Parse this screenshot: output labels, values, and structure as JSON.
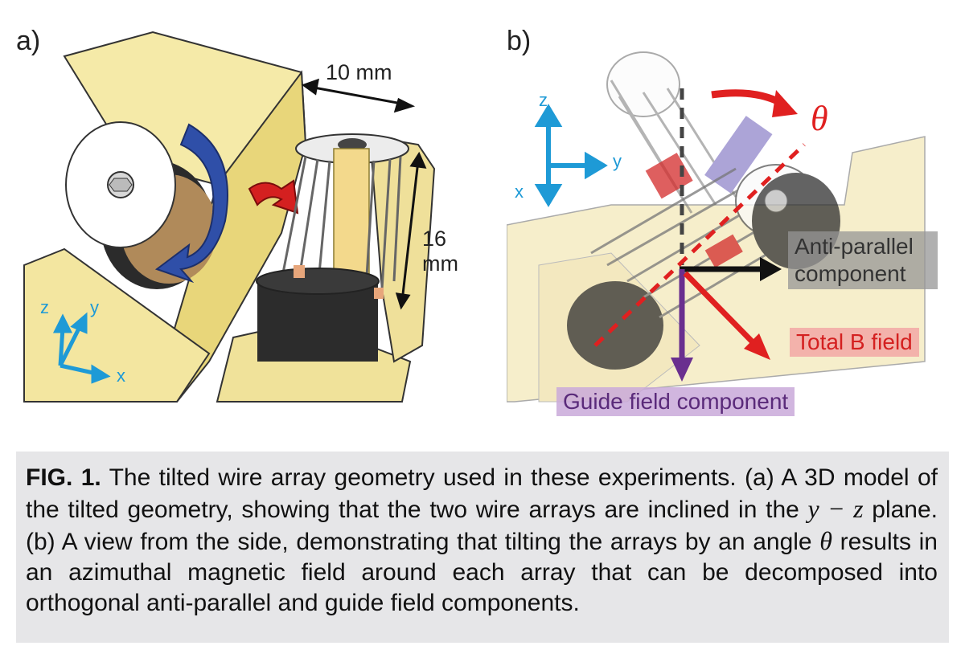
{
  "panel_a": {
    "label": "a)",
    "dim_width": "10 mm",
    "dim_height": "16 mm",
    "axes": {
      "z": "z",
      "y": "y",
      "x": "x"
    }
  },
  "panel_b": {
    "label": "b)",
    "theta": "θ",
    "axes": {
      "z": "z",
      "y": "y",
      "x": "x"
    },
    "labels": {
      "anti_parallel_1": "Anti-parallel",
      "anti_parallel_2": "component",
      "total_b": "Total B field",
      "guide": "Guide field component"
    },
    "colors": {
      "anti_parallel_bg": "#9a9a9a",
      "total_b_bg": "#f2a3a3",
      "guide_bg": "#c9a9d9",
      "axis": "#1e9ad6",
      "arrow_red": "#e02020",
      "arrow_purple": "#6a2f8f"
    }
  },
  "caption": {
    "fig_label": "FIG. 1.",
    "text_1": " The tilted wire array geometry used in these experiments. (a) A 3D model of the tilted geometry, showing that the two wire arrays are inclined in the ",
    "math_yz": "y − z",
    "text_2": " plane. (b) A view from the side, demonstrating that tilting the arrays by an angle ",
    "math_theta": "θ",
    "text_3": " results in an azimuthal magnetic field around each array that can be decomposed into orthogonal anti-parallel and guide field components."
  }
}
